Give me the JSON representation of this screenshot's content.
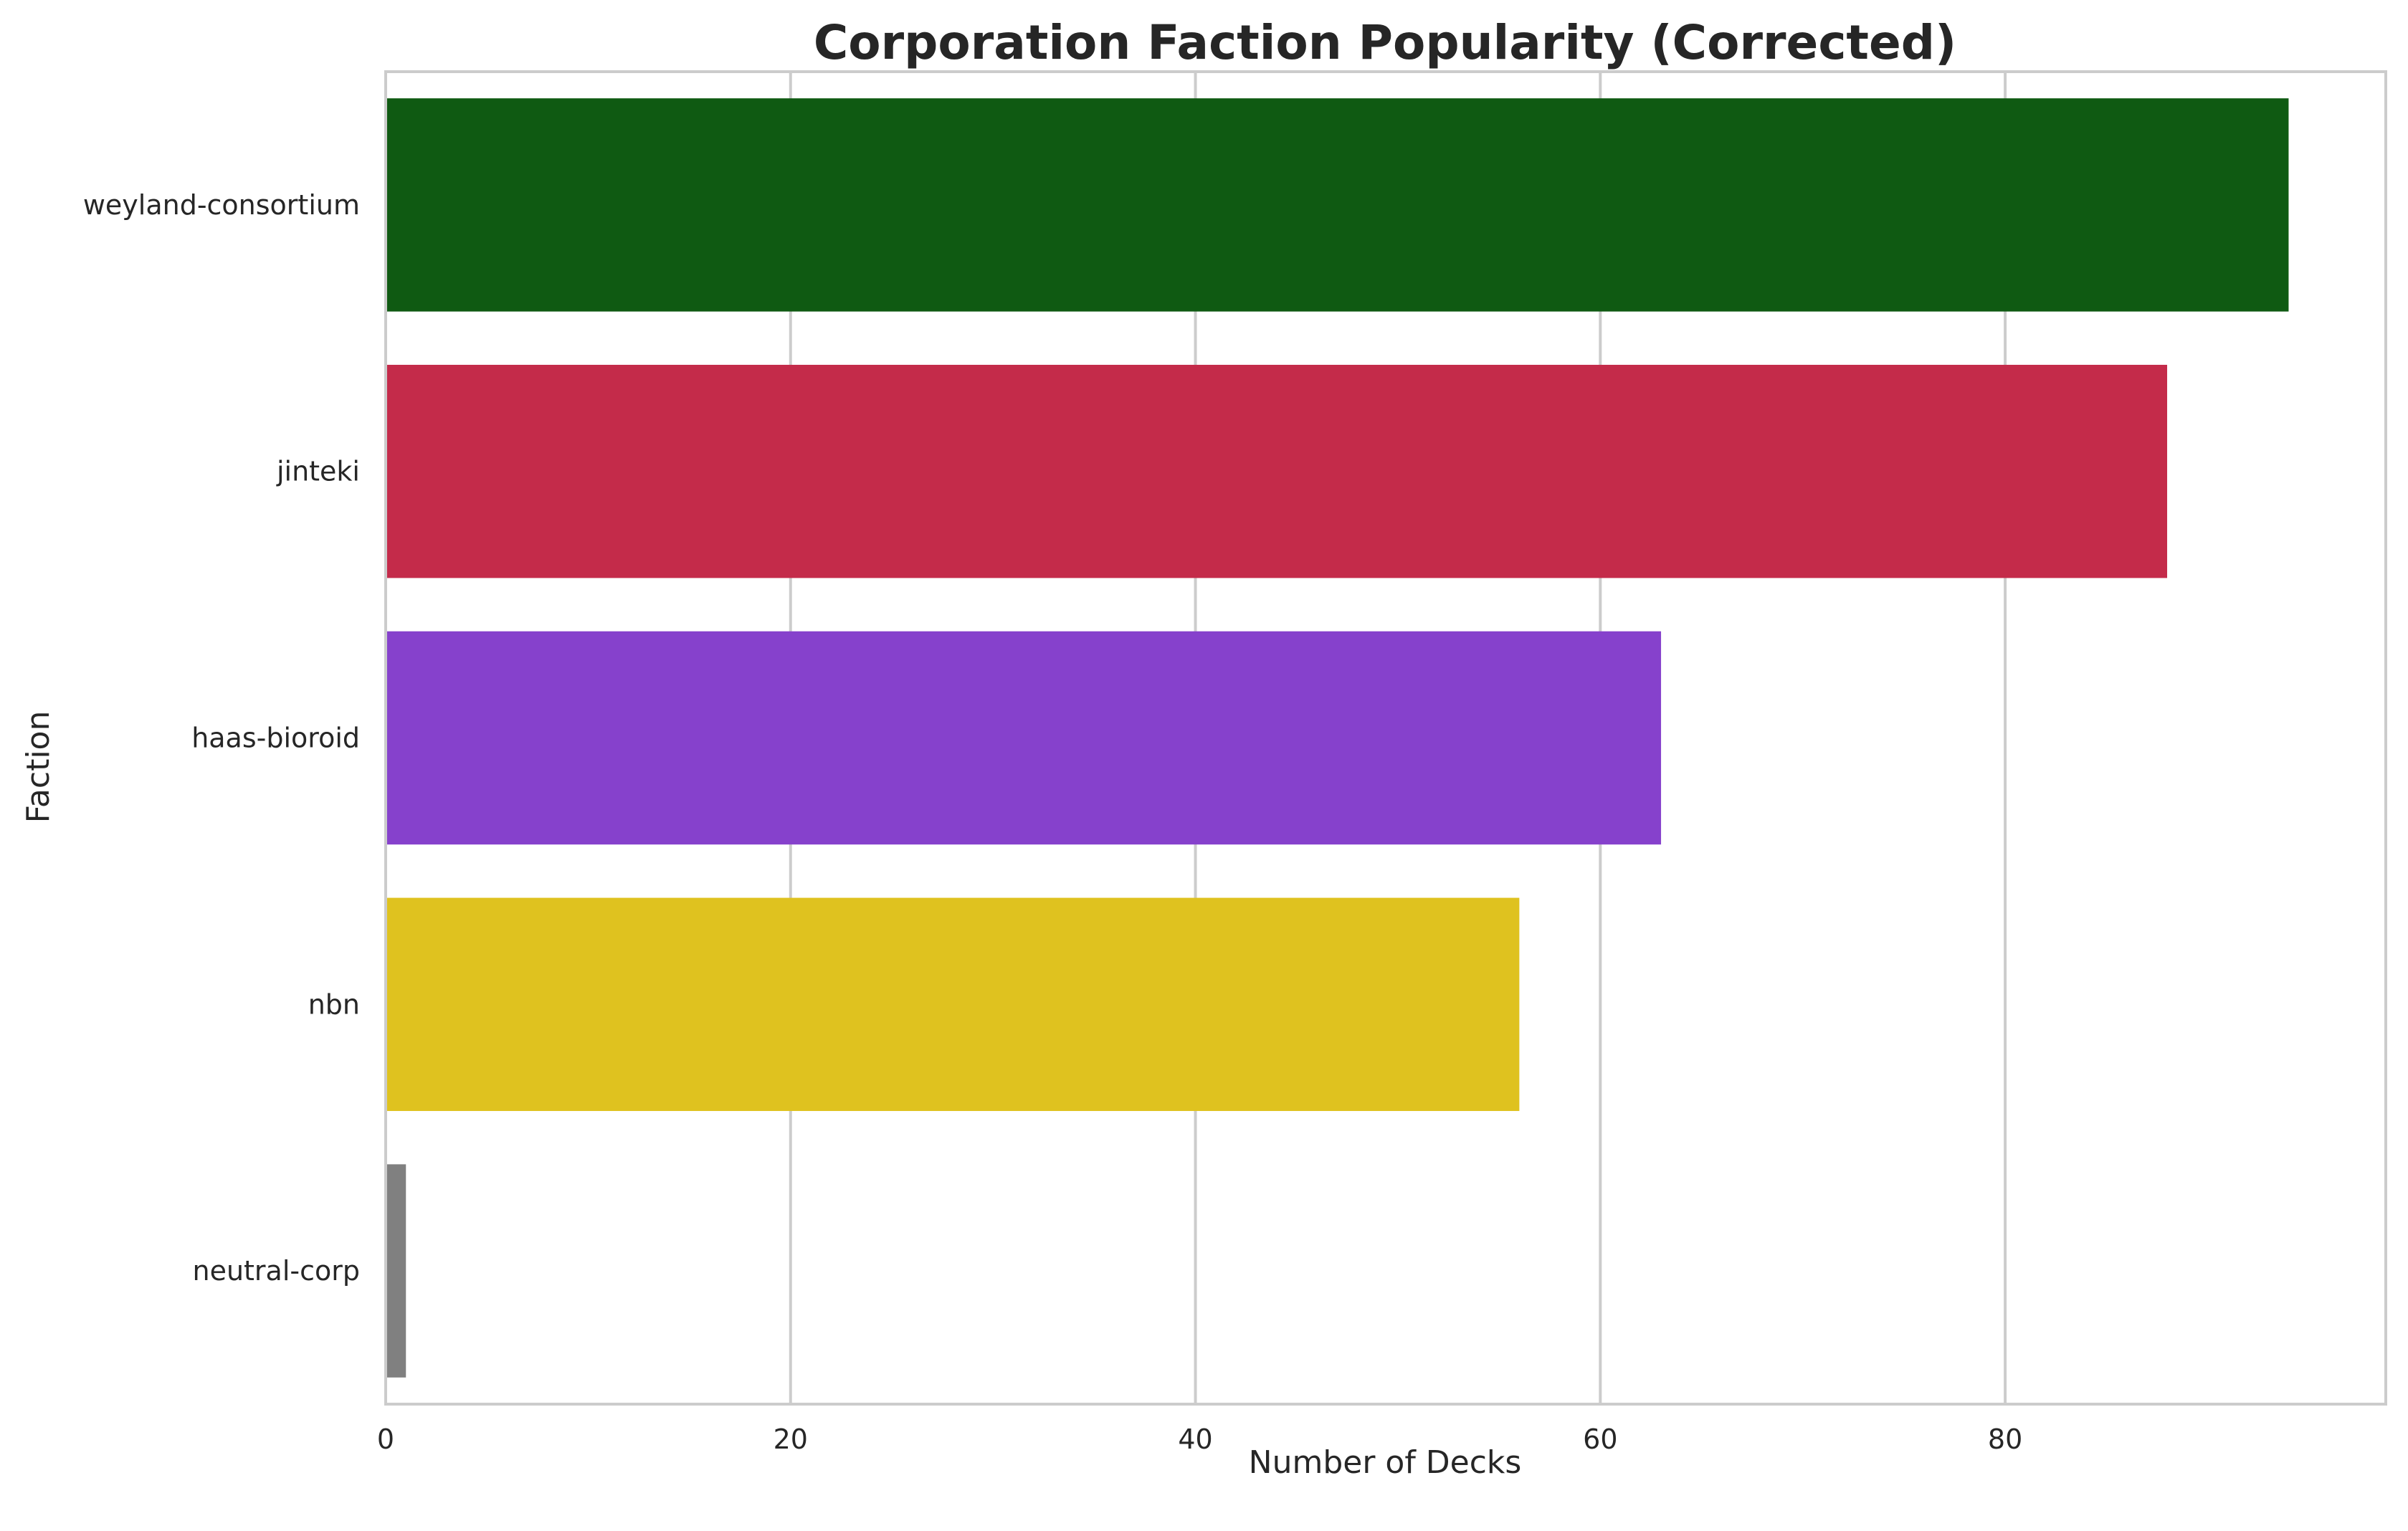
{
  "chart_data": {
    "type": "bar",
    "orientation": "horizontal",
    "title": "Corporation Faction Popularity (Corrected)",
    "xlabel": "Number of Decks",
    "ylabel": "Faction",
    "categories": [
      "weyland-consortium",
      "jinteki",
      "haas-bioroid",
      "nbn",
      "neutral-corp"
    ],
    "values": [
      94,
      88,
      63,
      56,
      1
    ],
    "colors": [
      "#0f5a12",
      "#c42b4a",
      "#8641cc",
      "#dfc21f",
      "#808080"
    ],
    "xlim": [
      0,
      98.8
    ],
    "xticks": [
      0,
      20,
      40,
      60,
      80
    ],
    "grid": true,
    "grid_axis": "x",
    "legend": "none"
  }
}
